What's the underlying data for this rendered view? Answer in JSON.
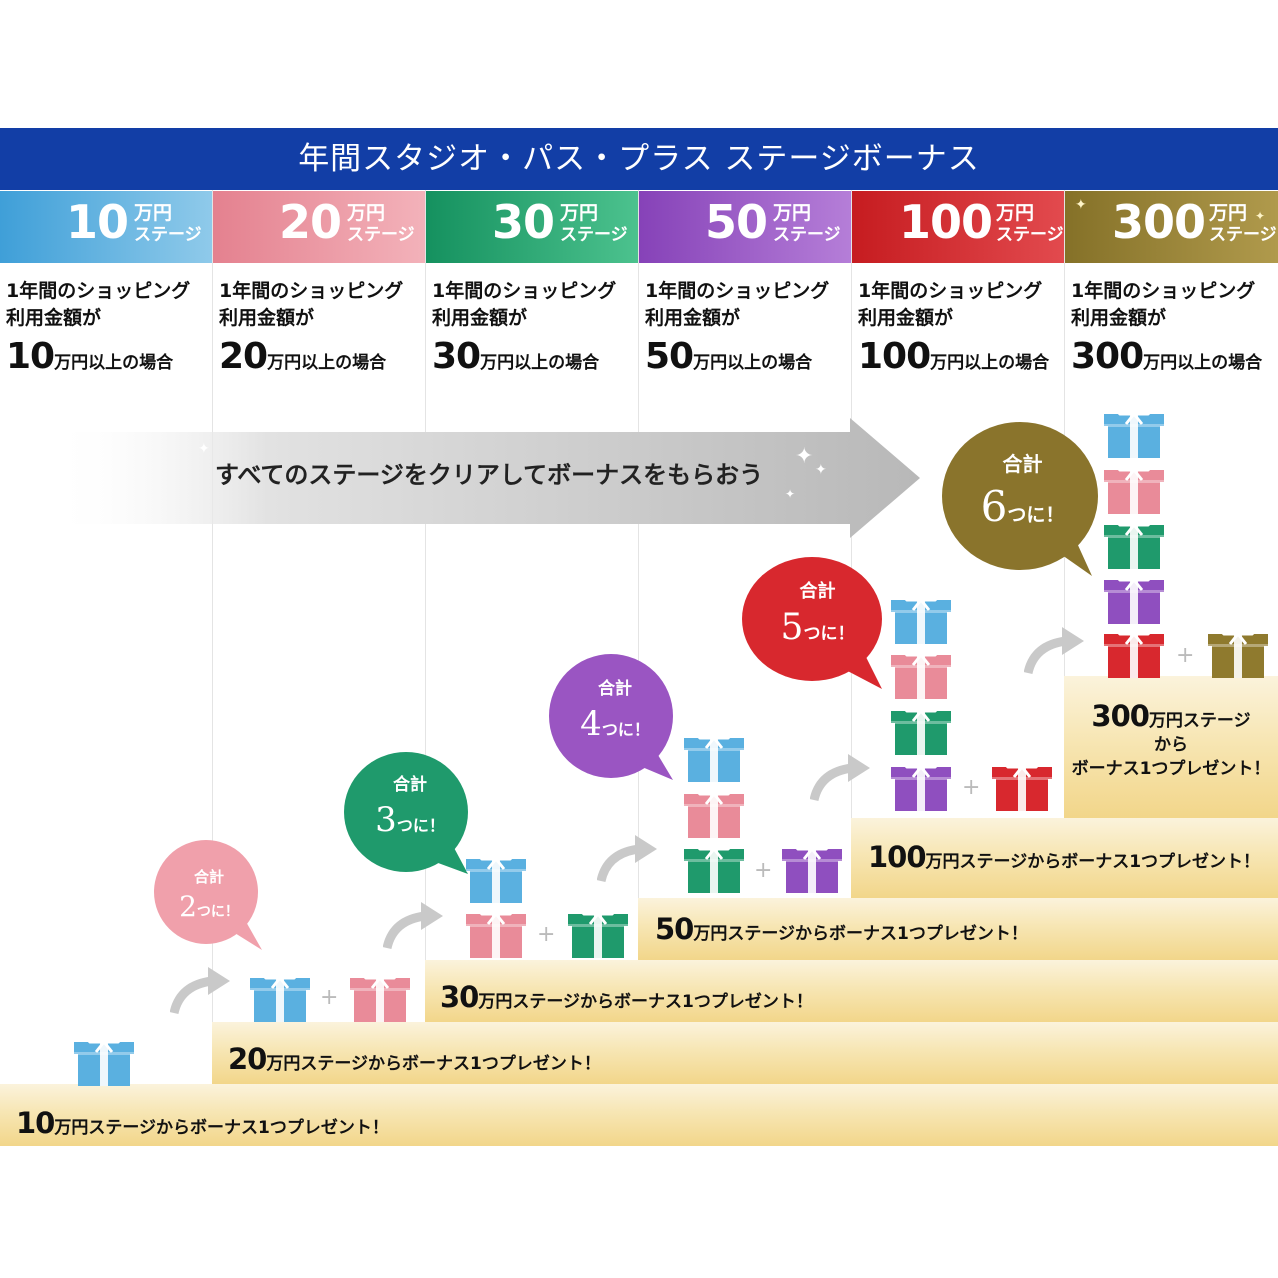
{
  "title": "年間スタジオ・パス・プラス ステージボーナス",
  "colors": {
    "header": "#123ea6",
    "stage10": "#5ab0e0",
    "stage20": "#e98b99",
    "stage30": "#1f9a6c",
    "stage50": "#8f4fbf",
    "stage100": "#d8282e",
    "stage300": "#8f7a2e"
  },
  "stages": [
    {
      "num": "10",
      "unit1": "万円",
      "unit2": "ステージ",
      "desc1": "1年間のショッピング",
      "desc2": "利用金額が",
      "amount": "10",
      "amount_suffix": "万円以上の場合"
    },
    {
      "num": "20",
      "unit1": "万円",
      "unit2": "ステージ",
      "desc1": "1年間のショッピング",
      "desc2": "利用金額が",
      "amount": "20",
      "amount_suffix": "万円以上の場合"
    },
    {
      "num": "30",
      "unit1": "万円",
      "unit2": "ステージ",
      "desc1": "1年間のショッピング",
      "desc2": "利用金額が",
      "amount": "30",
      "amount_suffix": "万円以上の場合"
    },
    {
      "num": "50",
      "unit1": "万円",
      "unit2": "ステージ",
      "desc1": "1年間のショッピング",
      "desc2": "利用金額が",
      "amount": "50",
      "amount_suffix": "万円以上の場合"
    },
    {
      "num": "100",
      "unit1": "万円",
      "unit2": "ステージ",
      "desc1": "1年間のショッピング",
      "desc2": "利用金額が",
      "amount": "100",
      "amount_suffix": "万円以上の場合"
    },
    {
      "num": "300",
      "unit1": "万円",
      "unit2": "ステージ",
      "desc1": "1年間のショッピング",
      "desc2": "利用金額が",
      "amount": "300",
      "amount_suffix": "万円以上の場合"
    }
  ],
  "banner": "すべてのステージをクリアしてボーナスをもらおう",
  "steps": [
    {
      "num": "10",
      "text": "万円ステージからボーナス1つプレゼント！"
    },
    {
      "num": "20",
      "text": "万円ステージからボーナス1つプレゼント！"
    },
    {
      "num": "30",
      "text": "万円ステージからボーナス1つプレゼント！"
    },
    {
      "num": "50",
      "text": "万円ステージからボーナス1つプレゼント！"
    },
    {
      "num": "100",
      "text": "万円ステージからボーナス1つプレゼント！"
    },
    {
      "num": "300",
      "text1": "万円ステージ",
      "text2": "から",
      "text3": "ボーナス1つプレゼント！"
    }
  ],
  "bubbles": [
    {
      "label": "合計",
      "count": "2",
      "suffix": "つに！"
    },
    {
      "label": "合計",
      "count": "3",
      "suffix": "つに！"
    },
    {
      "label": "合計",
      "count": "4",
      "suffix": "つに！"
    },
    {
      "label": "合計",
      "count": "5",
      "suffix": "つに！"
    },
    {
      "label": "合計",
      "count": "6",
      "suffix": "つに！"
    }
  ]
}
